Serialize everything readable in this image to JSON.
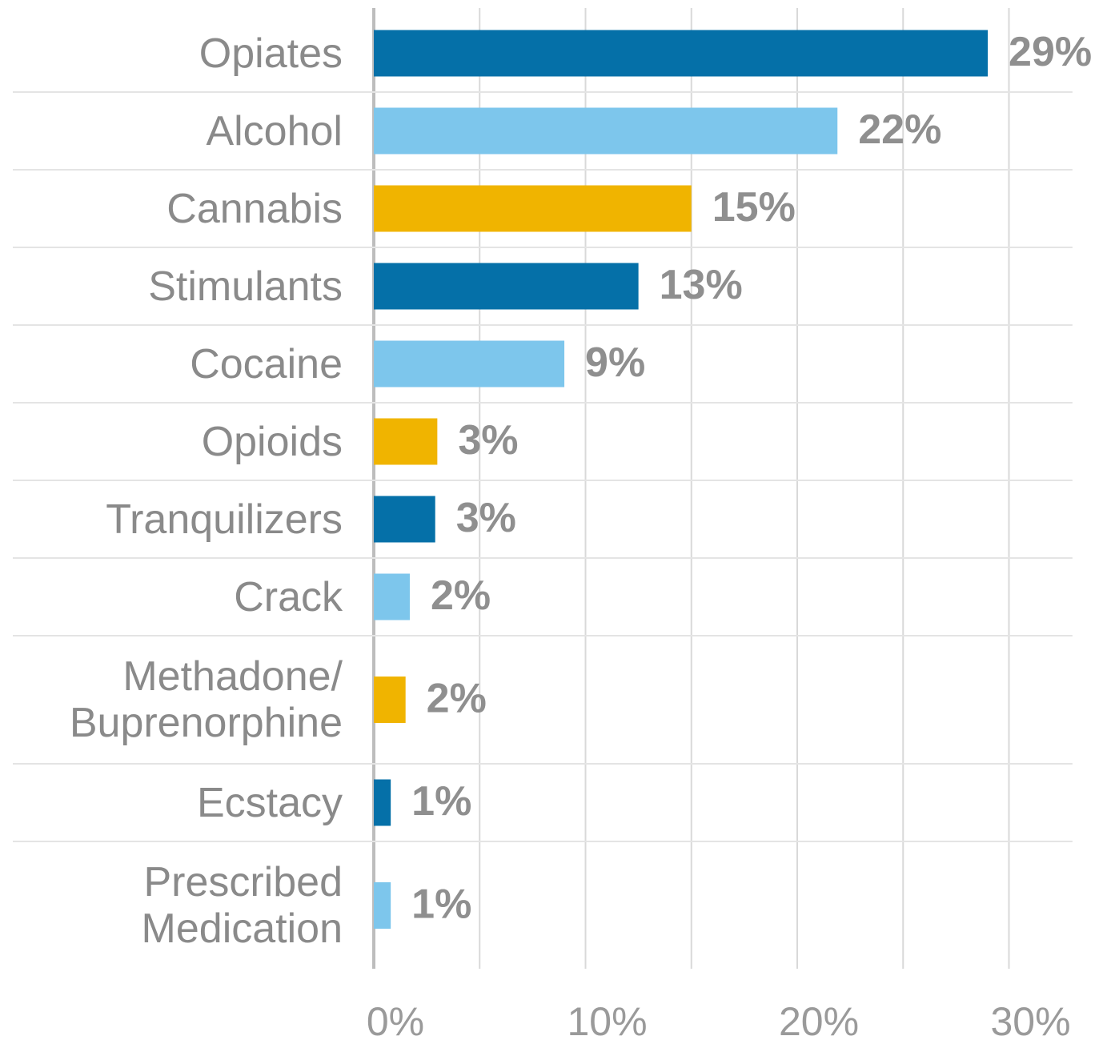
{
  "chart_data": {
    "type": "barh",
    "categories": [
      "Opiates",
      "Alcohol",
      "Cannabis",
      "Stimulants",
      "Cocaine",
      "Opioids",
      "Tranquilizers",
      "Crack",
      "Methadone/\nBuprenorphine",
      "Ecstacy",
      "Prescribed\nMedication"
    ],
    "values": [
      29,
      21.9,
      15,
      12.5,
      9,
      3,
      2.9,
      1.7,
      1.5,
      0.8,
      0.8
    ],
    "value_labels": [
      "29%",
      "22%",
      "15%",
      "13%",
      "9%",
      "3%",
      "3%",
      "2%",
      "2%",
      "1%",
      "1%"
    ],
    "colors": [
      "#0570a8",
      "#7dc6ec",
      "#f0b400",
      "#0570a8",
      "#7dc6ec",
      "#f0b400",
      "#0570a8",
      "#7dc6ec",
      "#f0b400",
      "#0570a8",
      "#7dc6ec"
    ],
    "xlim": [
      0,
      33
    ],
    "xticks": [
      {
        "value": 0,
        "label": "0%"
      },
      {
        "value": 10,
        "label": "10%"
      },
      {
        "value": 20,
        "label": "20%"
      },
      {
        "value": 30,
        "label": "30%"
      }
    ],
    "minor_xticks": [
      5,
      15,
      25
    ],
    "grid": true
  }
}
